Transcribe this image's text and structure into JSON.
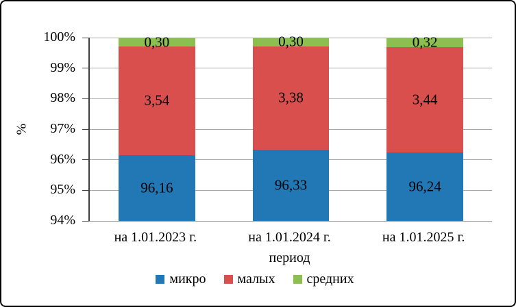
{
  "chart_data": {
    "type": "bar",
    "stacked": true,
    "percent_stacked": true,
    "categories": [
      "на 1.01.2023 г.",
      "на 1.01.2024 г.",
      "на 1.01.2025 г."
    ],
    "series": [
      {
        "name": "микро",
        "color": "#2277b5",
        "values": [
          96.16,
          96.33,
          96.24
        ],
        "labels": [
          "96,16",
          "96,33",
          "96,24"
        ]
      },
      {
        "name": "малых",
        "color": "#d94f4d",
        "values": [
          3.54,
          3.38,
          3.44
        ],
        "labels": [
          "3,54",
          "3,38",
          "3,44"
        ]
      },
      {
        "name": "средних",
        "color": "#8dbe50",
        "values": [
          0.3,
          0.3,
          0.32
        ],
        "labels": [
          "0,30",
          "0,30",
          "0,32"
        ]
      }
    ],
    "title": "",
    "xlabel": "период",
    "ylabel": "%",
    "ylim": [
      94,
      100
    ],
    "ytick_step": 1,
    "ytick_labels": [
      "94%",
      "95%",
      "96%",
      "97%",
      "98%",
      "99%",
      "100%"
    ],
    "grid": true,
    "legend_position": "bottom"
  },
  "figure": {
    "background": "#ffffff",
    "border_color": "#000000",
    "gridline_color": "#a6a6a6",
    "axis_color": "#404040"
  }
}
